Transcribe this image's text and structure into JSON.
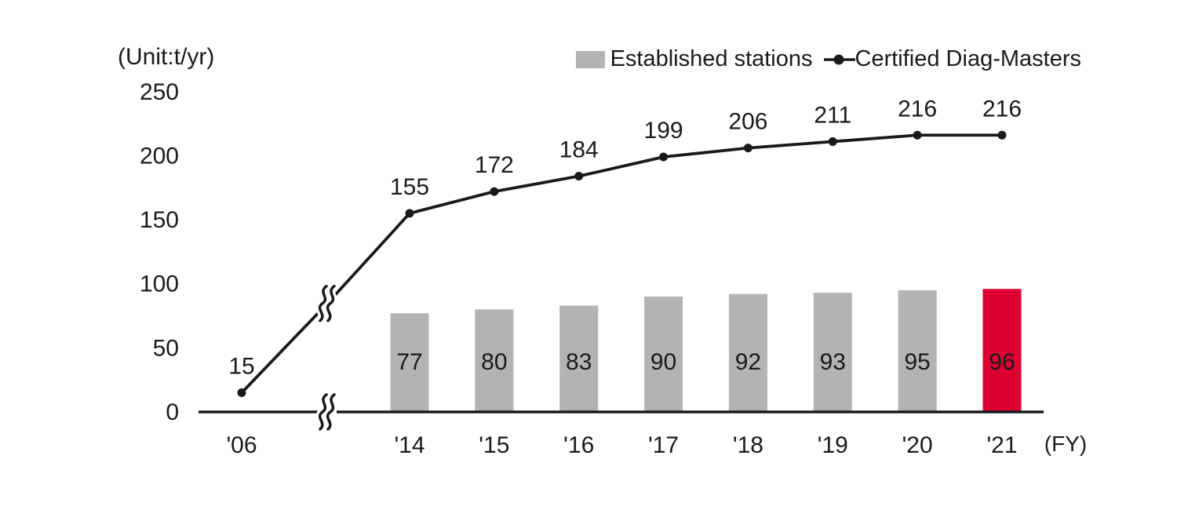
{
  "unit_label": "(Unit:t/yr)",
  "fy_label": "(FY)",
  "colors": {
    "text": "#1a1a1a",
    "line": "#1a1a1a",
    "bar": "#b3b3b3",
    "highlight_bar": "#dc0032",
    "highlight_value_text": "#ffffff",
    "background": "#ffffff"
  },
  "legend": {
    "bar_label": "Established stations",
    "line_label": "Certified Diag-Masters"
  },
  "chart_data": {
    "type": "bar+line",
    "title": "",
    "unit": "(Unit:t/yr)",
    "x_axis_suffix": "(FY)",
    "categories": [
      "'06",
      "'14",
      "'15",
      "'16",
      "'17",
      "'18",
      "'19",
      "'20",
      "'21"
    ],
    "y_ticks": [
      0,
      50,
      100,
      150,
      200,
      250
    ],
    "ylim": [
      0,
      250
    ],
    "grid": false,
    "legend_position": "top-right",
    "axis_break": {
      "present": true,
      "between": [
        "'06",
        "'14"
      ]
    },
    "series": [
      {
        "name": "Established stations",
        "type": "bar",
        "values": [
          null,
          77,
          80,
          83,
          90,
          92,
          93,
          95,
          96
        ],
        "highlight_index": 8
      },
      {
        "name": "Certified Diag-Masters",
        "type": "line",
        "values": [
          15,
          155,
          172,
          184,
          199,
          206,
          211,
          216,
          216
        ]
      }
    ]
  }
}
